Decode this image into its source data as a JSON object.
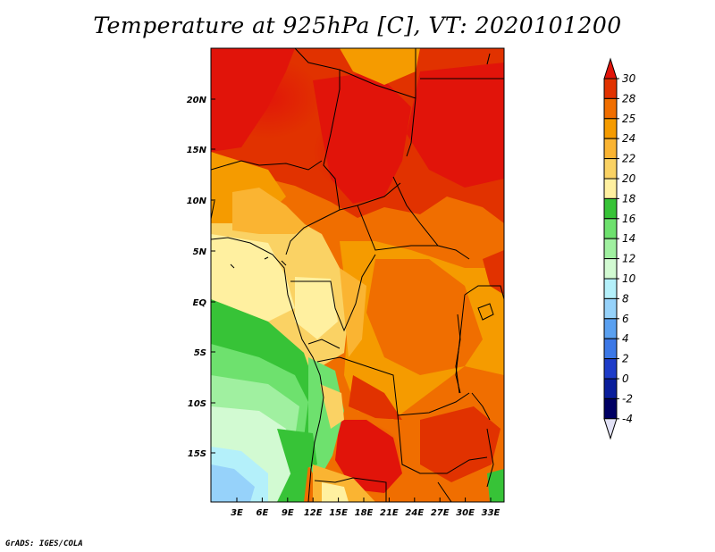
{
  "title": "Temperature at 925hPa [C], VT: 2020101200",
  "credit": "GrADS: IGES/COLA",
  "map": {
    "lat_ticks": [
      "20N",
      "15N",
      "10N",
      "5N",
      "EQ",
      "5S",
      "10S",
      "15S"
    ],
    "lon_ticks": [
      "3E",
      "6E",
      "9E",
      "12E",
      "15E",
      "18E",
      "21E",
      "24E",
      "27E",
      "30E",
      "33E"
    ]
  },
  "colorbar": {
    "levels": [
      "30",
      "28",
      "25",
      "24",
      "22",
      "20",
      "18",
      "16",
      "14",
      "12",
      "10",
      "8",
      "6",
      "4",
      "2",
      "0",
      "-2",
      "-4"
    ],
    "colors": [
      "#e1140a",
      "#e13200",
      "#f06e00",
      "#f59b00",
      "#fab432",
      "#fad264",
      "#fff0a0",
      "#37c337",
      "#6ee16e",
      "#a0f0a0",
      "#d2fad2",
      "#b4f0fa",
      "#96d2fa",
      "#5aa0f0",
      "#3c78e6",
      "#1e3cc8",
      "#0a1e9b",
      "#000064",
      "#e1e1f5"
    ]
  }
}
